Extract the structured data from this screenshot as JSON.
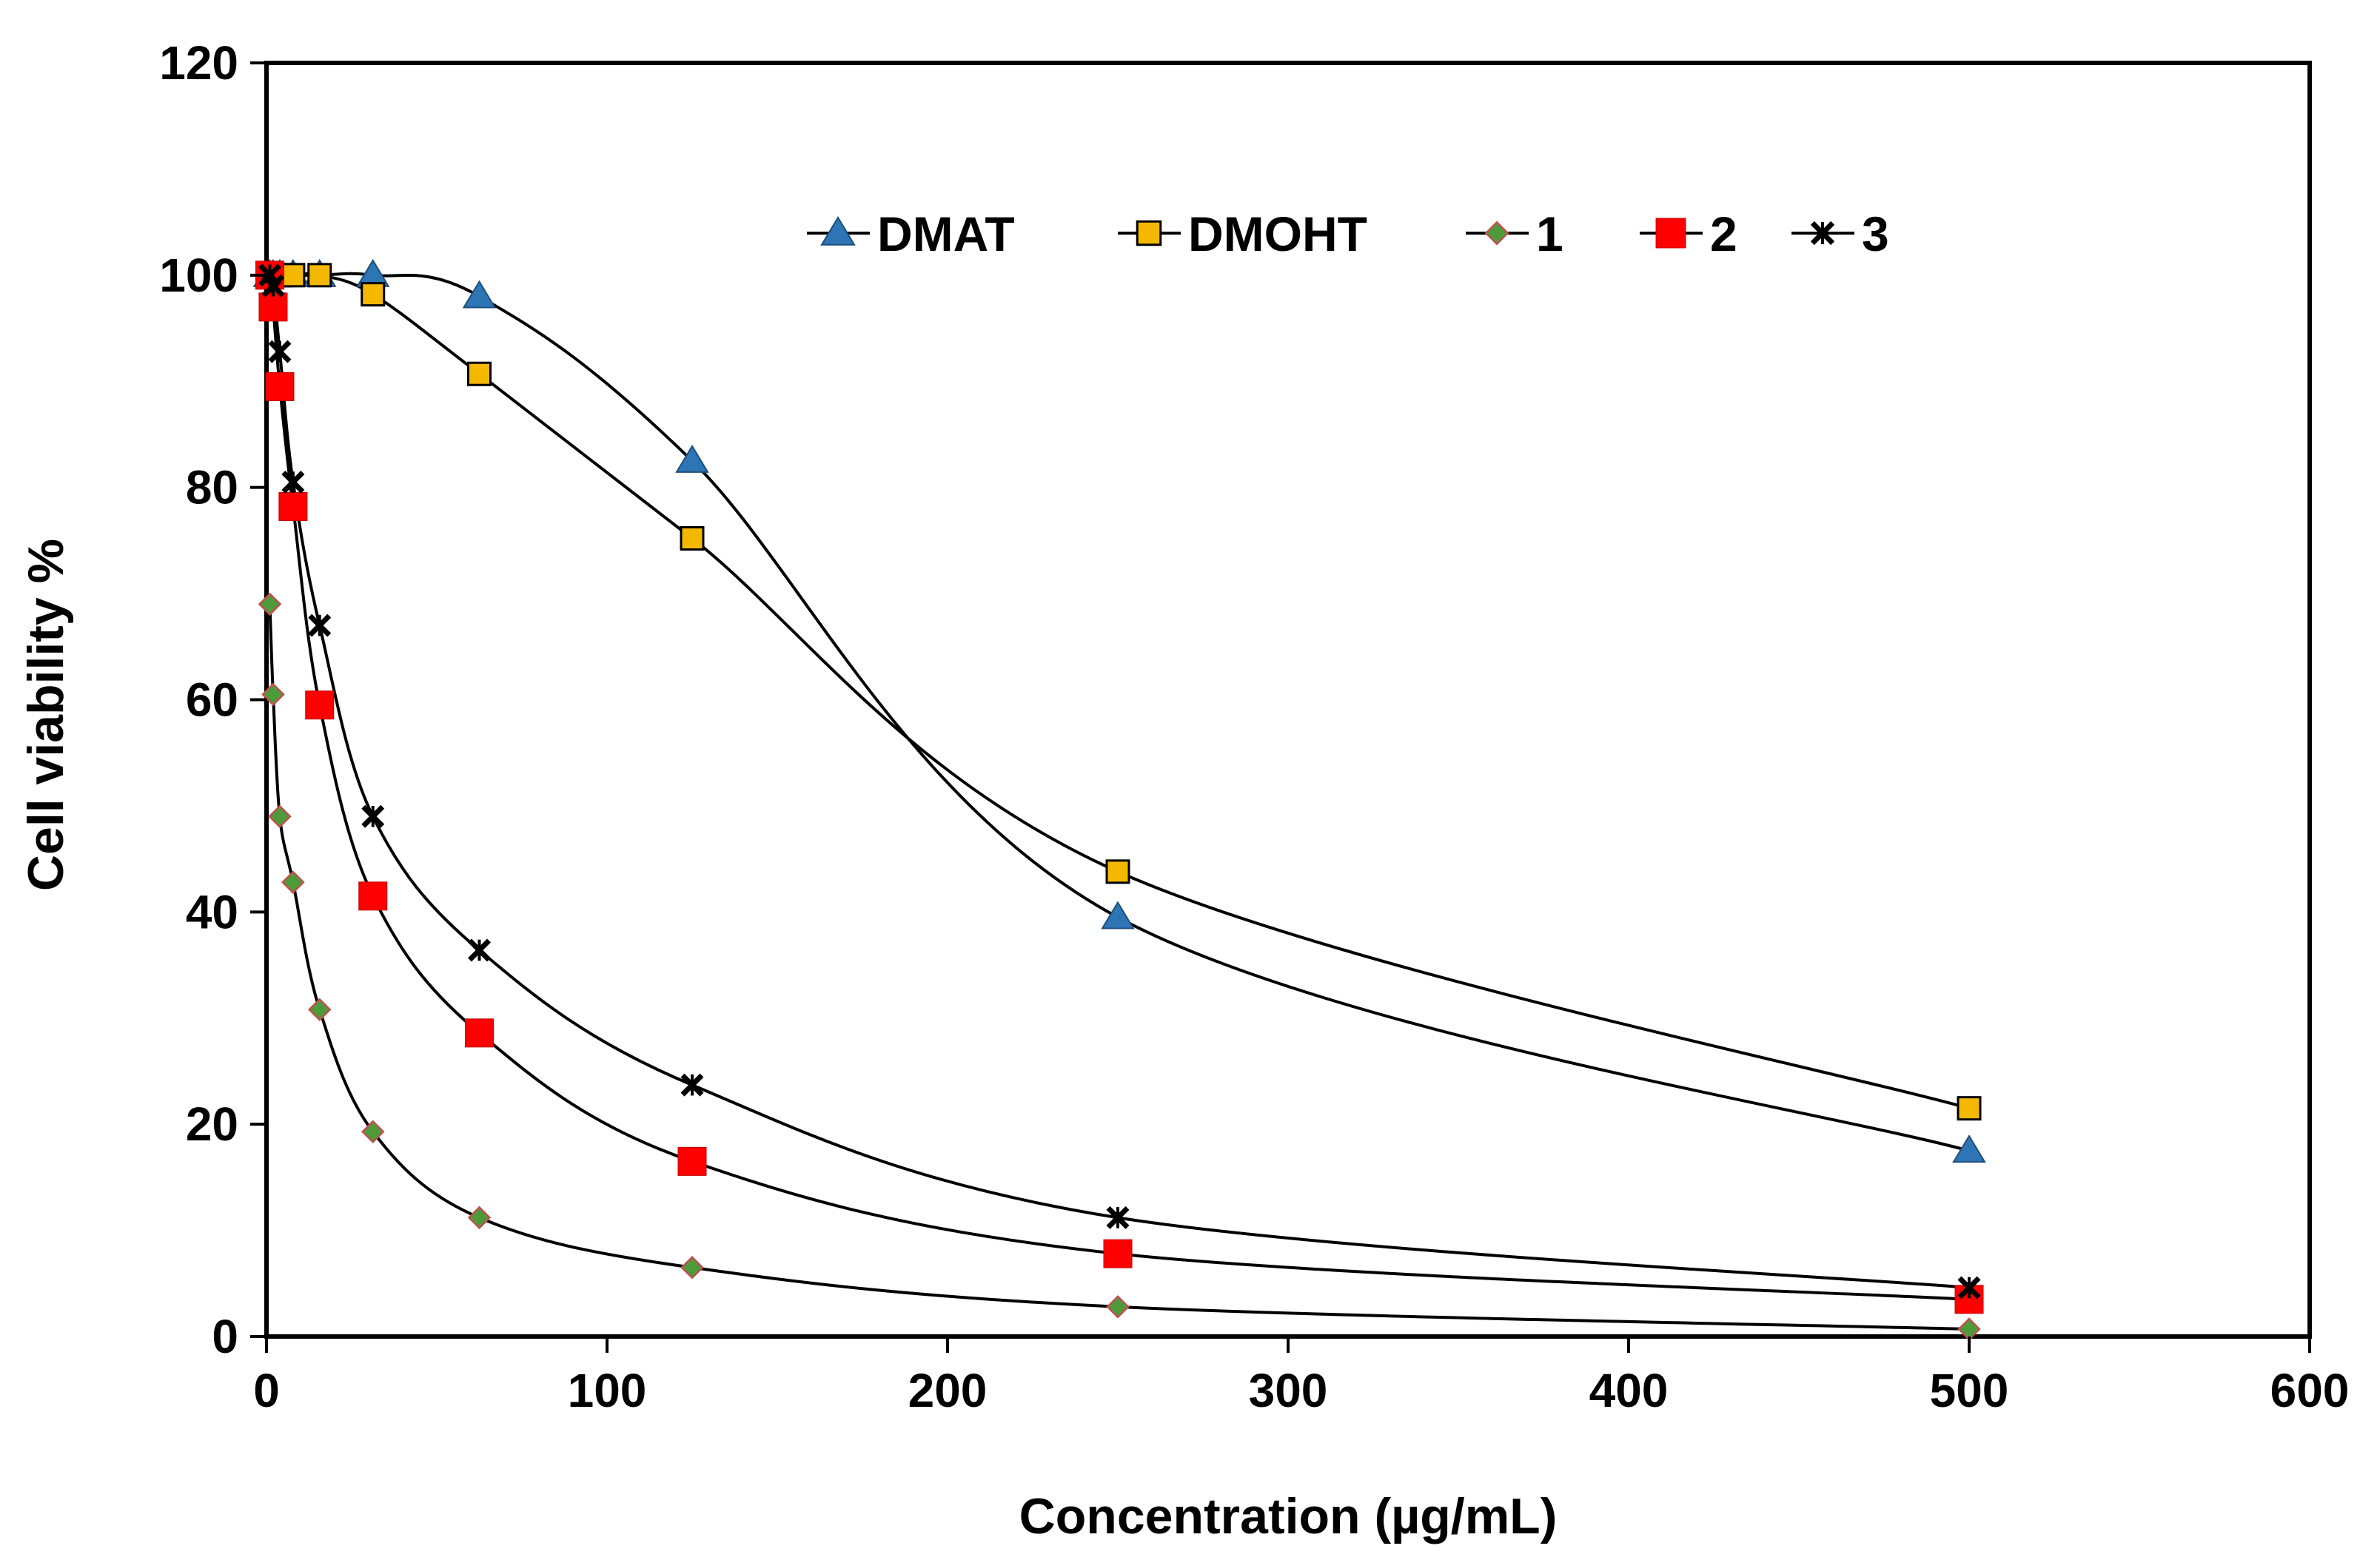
{
  "chart_data": {
    "type": "line",
    "title": "",
    "xlabel": "Concentration (µg/mL)",
    "ylabel": "Cell viability %",
    "xlim": [
      0,
      600
    ],
    "ylim": [
      0,
      120
    ],
    "xticks": [
      0,
      100,
      200,
      300,
      400,
      500,
      600
    ],
    "yticks": [
      0,
      20,
      40,
      60,
      80,
      100,
      120
    ],
    "grid": false,
    "legend": "top-right",
    "x": [
      0.98,
      1.95,
      3.9,
      7.8,
      15.6,
      31.25,
      62.5,
      125,
      250,
      500
    ],
    "series": [
      {
        "name": "DMAT",
        "marker": "triangle",
        "color": "#2E75B6",
        "values": [
          100,
          100,
          100,
          100,
          100,
          100,
          98,
          82.5,
          39.5,
          17.5
        ]
      },
      {
        "name": "DMOHT",
        "marker": "square-open",
        "color": "#F5B800",
        "values": [
          100,
          100,
          100,
          100,
          100,
          98.2,
          90.7,
          75.2,
          43.8,
          21.5
        ]
      },
      {
        "name": "1",
        "marker": "diamond",
        "color": "#4E9A3A",
        "values": [
          69,
          60.5,
          49,
          42.8,
          30.8,
          19.3,
          11.2,
          6.5,
          2.8,
          0.7
        ]
      },
      {
        "name": "2",
        "marker": "square",
        "color": "#FF0000",
        "values": [
          100,
          97,
          89.5,
          78.2,
          59.5,
          41.5,
          28.6,
          16.5,
          7.8,
          3.5
        ]
      },
      {
        "name": "3",
        "marker": "star",
        "color": "#000000",
        "values": [
          100,
          99,
          92.8,
          80.5,
          67,
          49,
          36.4,
          23.7,
          11.2,
          4.6
        ]
      }
    ]
  }
}
